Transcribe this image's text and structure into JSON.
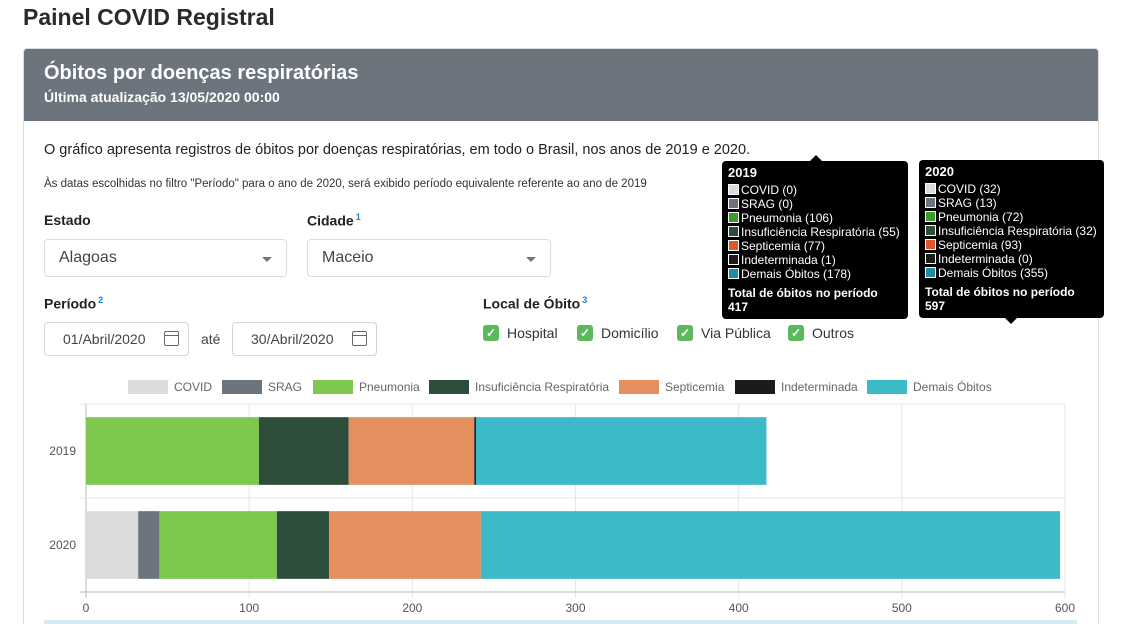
{
  "page_title": "Painel COVID Registral",
  "card": {
    "title": "Óbitos por doenças respiratórias",
    "subtitle": "Última atualização 13/05/2020 00:00",
    "description": "O gráfico apresenta registros de óbitos por doenças respiratórias, em todo o Brasil, nos anos de 2019 e 2020.",
    "note": "Às datas escolhidas no filtro \"Período\" para o ano de 2020, será exibido período equivalente referente ao ano de 2019"
  },
  "filters": {
    "estado_label": "Estado",
    "estado_value": "Alagoas",
    "cidade_label": "Cidade",
    "cidade_sup": "1",
    "cidade_value": "Maceio",
    "periodo_label": "Período",
    "periodo_sup": "2",
    "date_start": "01/Abril/2020",
    "date_separator": "até",
    "date_end": "30/Abril/2020",
    "local_label": "Local de Óbito",
    "local_sup": "3",
    "local_options": [
      {
        "label": "Hospital",
        "checked": true
      },
      {
        "label": "Domicílio",
        "checked": true
      },
      {
        "label": "Via Pública",
        "checked": true
      },
      {
        "label": "Outros",
        "checked": true
      }
    ]
  },
  "chart_data": {
    "type": "bar",
    "orientation": "horizontal",
    "stacked": true,
    "categories": [
      "2019",
      "2020"
    ],
    "series": [
      {
        "name": "COVID",
        "color": "#dcdcdc",
        "values": [
          0,
          32
        ]
      },
      {
        "name": "SRAG",
        "color": "#6c757d",
        "values": [
          0,
          13
        ]
      },
      {
        "name": "Pneumonia",
        "color": "#7ec850",
        "values": [
          106,
          72
        ]
      },
      {
        "name": "Insuficiência Respiratória",
        "color": "#2e4e3c",
        "values": [
          55,
          32
        ]
      },
      {
        "name": "Septicemia",
        "color": "#e58f5f",
        "values": [
          77,
          93
        ]
      },
      {
        "name": "Indeterminada",
        "color": "#1b1b1b",
        "values": [
          1,
          0
        ]
      },
      {
        "name": "Demais Óbitos",
        "color": "#3cbac8",
        "values": [
          178,
          355
        ]
      }
    ],
    "xlim": [
      0,
      600
    ],
    "xticks": [
      "0",
      "100",
      "200",
      "300",
      "400",
      "500",
      "600"
    ],
    "grid": true,
    "legend_position": "top"
  },
  "tooltips": [
    {
      "title": "2019",
      "rows": [
        {
          "label": "COVID (0)",
          "color": "#dcdcdc"
        },
        {
          "label": "SRAG (0)",
          "color": "#6c757d"
        },
        {
          "label": "Pneumonia (106)",
          "color": "#3c9a2c"
        },
        {
          "label": "Insuficiência Respiratória (55)",
          "color": "#2e4e3c"
        },
        {
          "label": "Septicemia (77)",
          "color": "#e0552b"
        },
        {
          "label": "Indeterminada (1)",
          "color": "#1b1b1b"
        },
        {
          "label": "Demais Óbitos (178)",
          "color": "#1c8fa0"
        }
      ],
      "total_label": "Total de óbitos no período",
      "total_value": "417"
    },
    {
      "title": "2020",
      "rows": [
        {
          "label": "COVID (32)",
          "color": "#dcdcdc"
        },
        {
          "label": "SRAG (13)",
          "color": "#6c757d"
        },
        {
          "label": "Pneumonia (72)",
          "color": "#3c9a2c"
        },
        {
          "label": "Insuficiência Respiratória (32)",
          "color": "#2e4e3c"
        },
        {
          "label": "Septicemia (93)",
          "color": "#e0552b"
        },
        {
          "label": "Indeterminada (0)",
          "color": "#1b1b1b"
        },
        {
          "label": "Demais Óbitos (355)",
          "color": "#1c8fa0"
        }
      ],
      "total_label": "Total de óbitos no período",
      "total_value": "597"
    }
  ]
}
